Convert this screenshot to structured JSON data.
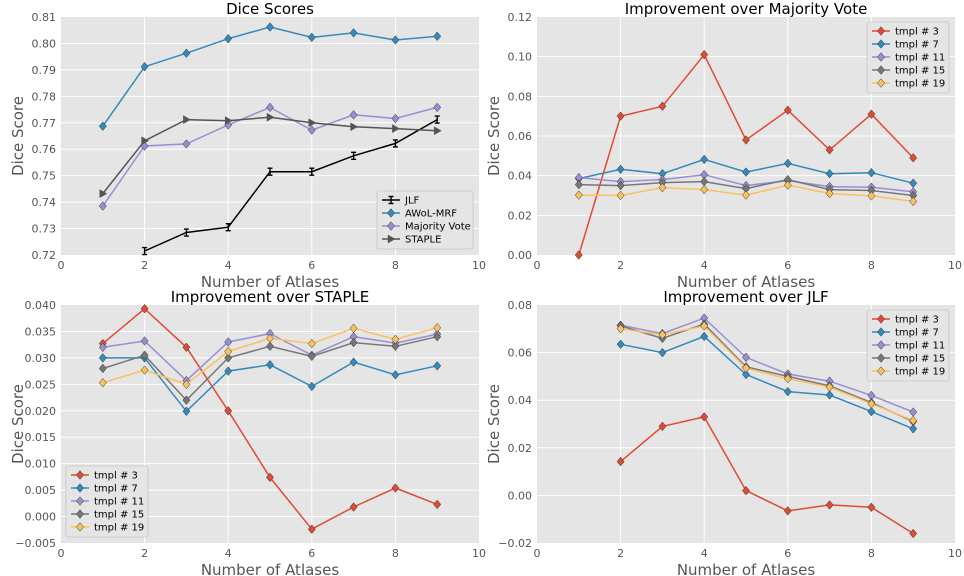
{
  "colors": {
    "panel_bg": "#e5e5e5",
    "grid": "#ffffff",
    "jlf": "#000000",
    "awol": "#348abd",
    "majority": "#988ed5",
    "staple": "#555555",
    "t3": "#e24a33",
    "t7": "#348abd",
    "t11": "#988ed5",
    "t15": "#777777",
    "t19": "#fbc15e"
  },
  "chart_data": [
    {
      "type": "line",
      "title": "Dice Scores",
      "xlabel": "Number of Atlases",
      "ylabel": "Dice Score",
      "xlim": [
        0,
        10
      ],
      "ylim": [
        0.72,
        0.81
      ],
      "xticks": [
        0,
        2,
        4,
        6,
        8,
        10
      ],
      "xtick_labels": [
        "0",
        "2",
        "4",
        "6",
        "8",
        "10"
      ],
      "yticks": [
        0.72,
        0.73,
        0.74,
        0.75,
        0.76,
        0.77,
        0.78,
        0.79,
        0.8,
        0.81
      ],
      "ytick_labels": [
        "0.72",
        "0.73",
        "0.74",
        "0.75",
        "0.76",
        "0.77",
        "0.78",
        "0.79",
        "0.80",
        "0.81"
      ],
      "legend_position": "lower-right",
      "series": [
        {
          "name": "JLF",
          "color_key": "jlf",
          "marker": "errorbar",
          "x": [
            2,
            3,
            4,
            5,
            6,
            7,
            8,
            9
          ],
          "values": [
            0.7215,
            0.7285,
            0.7305,
            0.7515,
            0.7515,
            0.7575,
            0.7622,
            0.7712
          ]
        },
        {
          "name": "AWoL-MRF",
          "color_key": "awol",
          "marker": "diamond",
          "x": [
            1,
            2,
            3,
            4,
            5,
            6,
            7,
            8,
            9
          ],
          "values": [
            0.7687,
            0.7912,
            0.7963,
            0.8018,
            0.8062,
            0.8023,
            0.804,
            0.8013,
            0.8027
          ]
        },
        {
          "name": "Majority Vote",
          "color_key": "majority",
          "marker": "diamond",
          "x": [
            1,
            2,
            3,
            4,
            5,
            6,
            7,
            8,
            9
          ],
          "values": [
            0.7385,
            0.7612,
            0.762,
            0.7692,
            0.7758,
            0.7672,
            0.773,
            0.7716,
            0.7758
          ]
        },
        {
          "name": "STAPLE",
          "color_key": "staple",
          "marker": "triangle",
          "x": [
            1,
            2,
            3,
            4,
            5,
            6,
            7,
            8,
            9
          ],
          "values": [
            0.7432,
            0.7632,
            0.7712,
            0.7708,
            0.7721,
            0.77,
            0.7685,
            0.7678,
            0.767
          ]
        }
      ]
    },
    {
      "type": "line",
      "title": "Improvement over Majority Vote",
      "xlabel": "Number of Atlases",
      "ylabel": "Dice Score",
      "xlim": [
        0,
        10
      ],
      "ylim": [
        0.0,
        0.12
      ],
      "xticks": [
        0,
        2,
        4,
        6,
        8,
        10
      ],
      "xtick_labels": [
        "0",
        "2",
        "4",
        "6",
        "8",
        "10"
      ],
      "yticks": [
        0.0,
        0.02,
        0.04,
        0.06,
        0.08,
        0.1,
        0.12
      ],
      "ytick_labels": [
        "0.00",
        "0.02",
        "0.04",
        "0.06",
        "0.08",
        "0.10",
        "0.12"
      ],
      "legend_position": "top-right",
      "series": [
        {
          "name": "tmpl # 3",
          "color_key": "t3",
          "marker": "diamond",
          "x": [
            1,
            2,
            3,
            4,
            5,
            6,
            7,
            8,
            9
          ],
          "values": [
            0.0,
            0.07,
            0.075,
            0.101,
            0.058,
            0.073,
            0.053,
            0.071,
            0.049
          ]
        },
        {
          "name": "tmpl # 7",
          "color_key": "t7",
          "marker": "diamond",
          "x": [
            1,
            2,
            3,
            4,
            5,
            6,
            7,
            8,
            9
          ],
          "values": [
            0.0385,
            0.0432,
            0.041,
            0.0482,
            0.0418,
            0.0462,
            0.041,
            0.0415,
            0.0362
          ]
        },
        {
          "name": "tmpl # 11",
          "color_key": "t11",
          "marker": "diamond",
          "x": [
            1,
            2,
            3,
            4,
            5,
            6,
            7,
            8,
            9
          ],
          "values": [
            0.039,
            0.037,
            0.038,
            0.0405,
            0.035,
            0.0375,
            0.0345,
            0.0342,
            0.0318
          ]
        },
        {
          "name": "tmpl # 15",
          "color_key": "t15",
          "marker": "diamond",
          "x": [
            1,
            2,
            3,
            4,
            5,
            6,
            7,
            8,
            9
          ],
          "values": [
            0.0355,
            0.035,
            0.0365,
            0.037,
            0.0335,
            0.038,
            0.033,
            0.0325,
            0.03
          ]
        },
        {
          "name": "tmpl # 19",
          "color_key": "t19",
          "marker": "diamond",
          "x": [
            1,
            2,
            3,
            4,
            5,
            6,
            7,
            8,
            9
          ],
          "values": [
            0.0302,
            0.03,
            0.034,
            0.033,
            0.0302,
            0.0352,
            0.031,
            0.0298,
            0.027
          ]
        }
      ]
    },
    {
      "type": "line",
      "title": "Improvement over STAPLE",
      "xlabel": "Number of Atlases",
      "ylabel": "Dice Score",
      "xlim": [
        0,
        10
      ],
      "ylim": [
        -0.005,
        0.04
      ],
      "xticks": [
        0,
        2,
        4,
        6,
        8,
        10
      ],
      "xtick_labels": [
        "0",
        "2",
        "4",
        "6",
        "8",
        "10"
      ],
      "yticks": [
        -0.005,
        0.0,
        0.005,
        0.01,
        0.015,
        0.02,
        0.025,
        0.03,
        0.035,
        0.04
      ],
      "ytick_labels": [
        "−0.005",
        "0.000",
        "0.005",
        "0.010",
        "0.015",
        "0.020",
        "0.025",
        "0.030",
        "0.035",
        "0.040"
      ],
      "legend_position": "lower-left",
      "series": [
        {
          "name": "tmpl # 3",
          "color_key": "t3",
          "marker": "diamond",
          "x": [
            1,
            2,
            3,
            4,
            5,
            6,
            7,
            8,
            9
          ],
          "values": [
            0.0327,
            0.0393,
            0.032,
            0.02,
            0.0074,
            -0.0024,
            0.0018,
            0.0054,
            0.0023
          ]
        },
        {
          "name": "tmpl # 7",
          "color_key": "t7",
          "marker": "diamond",
          "x": [
            1,
            2,
            3,
            4,
            5,
            6,
            7,
            8,
            9
          ],
          "values": [
            0.03,
            0.03,
            0.0199,
            0.0275,
            0.0287,
            0.0246,
            0.0292,
            0.0268,
            0.0285
          ]
        },
        {
          "name": "tmpl # 11",
          "color_key": "t11",
          "marker": "diamond",
          "x": [
            1,
            2,
            3,
            4,
            5,
            6,
            7,
            8,
            9
          ],
          "values": [
            0.032,
            0.0332,
            0.0257,
            0.033,
            0.0346,
            0.0305,
            0.034,
            0.0328,
            0.0345
          ]
        },
        {
          "name": "tmpl # 15",
          "color_key": "t15",
          "marker": "diamond",
          "x": [
            1,
            2,
            3,
            4,
            5,
            6,
            7,
            8,
            9
          ],
          "values": [
            0.028,
            0.0305,
            0.022,
            0.03,
            0.0322,
            0.0303,
            0.0329,
            0.0322,
            0.034
          ]
        },
        {
          "name": "tmpl # 19",
          "color_key": "t19",
          "marker": "diamond",
          "x": [
            1,
            2,
            3,
            4,
            5,
            6,
            7,
            8,
            9
          ],
          "values": [
            0.0253,
            0.0277,
            0.025,
            0.0312,
            0.0337,
            0.0327,
            0.0356,
            0.0335,
            0.0357
          ]
        }
      ]
    },
    {
      "type": "line",
      "title": "Improvement over JLF",
      "xlabel": "Number of Atlases",
      "ylabel": "Dice Score",
      "xlim": [
        0,
        10
      ],
      "ylim": [
        -0.02,
        0.08
      ],
      "xticks": [
        0,
        2,
        4,
        6,
        8,
        10
      ],
      "xtick_labels": [
        "0",
        "2",
        "4",
        "6",
        "8",
        "10"
      ],
      "yticks": [
        -0.02,
        0.0,
        0.02,
        0.04,
        0.06,
        0.08
      ],
      "ytick_labels": [
        "−0.02",
        "0.00",
        "0.02",
        "0.04",
        "0.06",
        "0.08"
      ],
      "legend_position": "top-right",
      "series": [
        {
          "name": "tmpl # 3",
          "color_key": "t3",
          "marker": "diamond",
          "x": [
            2,
            3,
            4,
            5,
            6,
            7,
            8,
            9
          ],
          "values": [
            0.0142,
            0.029,
            0.033,
            0.002,
            -0.0065,
            -0.004,
            -0.005,
            -0.016
          ]
        },
        {
          "name": "tmpl # 7",
          "color_key": "t7",
          "marker": "diamond",
          "x": [
            2,
            3,
            4,
            5,
            6,
            7,
            8,
            9
          ],
          "values": [
            0.0635,
            0.06,
            0.0668,
            0.0508,
            0.0436,
            0.0422,
            0.0352,
            0.028
          ]
        },
        {
          "name": "tmpl # 11",
          "color_key": "t11",
          "marker": "diamond",
          "x": [
            2,
            3,
            4,
            5,
            6,
            7,
            8,
            9
          ],
          "values": [
            0.0715,
            0.068,
            0.0745,
            0.058,
            0.051,
            0.048,
            0.042,
            0.035
          ]
        },
        {
          "name": "tmpl # 15",
          "color_key": "t15",
          "marker": "diamond",
          "x": [
            2,
            3,
            4,
            5,
            6,
            7,
            8,
            9
          ],
          "values": [
            0.0712,
            0.066,
            0.072,
            0.054,
            0.05,
            0.046,
            0.039,
            0.031
          ]
        },
        {
          "name": "tmpl # 19",
          "color_key": "t19",
          "marker": "diamond",
          "x": [
            2,
            3,
            4,
            5,
            6,
            7,
            8,
            9
          ],
          "values": [
            0.07,
            0.0675,
            0.0712,
            0.0535,
            0.049,
            0.0455,
            0.0385,
            0.0315
          ]
        }
      ]
    }
  ]
}
